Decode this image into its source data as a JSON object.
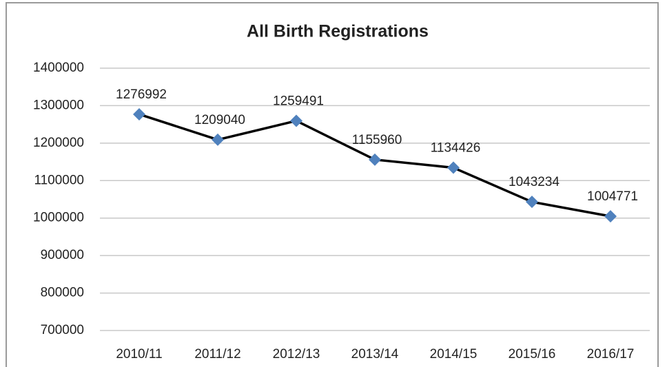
{
  "chart_data": {
    "type": "line",
    "title": "All Birth Registrations",
    "categories": [
      "2010/11",
      "2011/12",
      "2012/13",
      "2013/14",
      "2014/15",
      "2015/16",
      "2016/17"
    ],
    "values": [
      1276992,
      1209040,
      1259491,
      1155960,
      1134426,
      1043234,
      1004771
    ],
    "color": "#000000",
    "marker_color": "#4f81bd",
    "ylim": [
      700000,
      1400000
    ],
    "yticks": [
      700000,
      800000,
      900000,
      1000000,
      1100000,
      1200000,
      1300000,
      1400000
    ],
    "grid": true
  }
}
